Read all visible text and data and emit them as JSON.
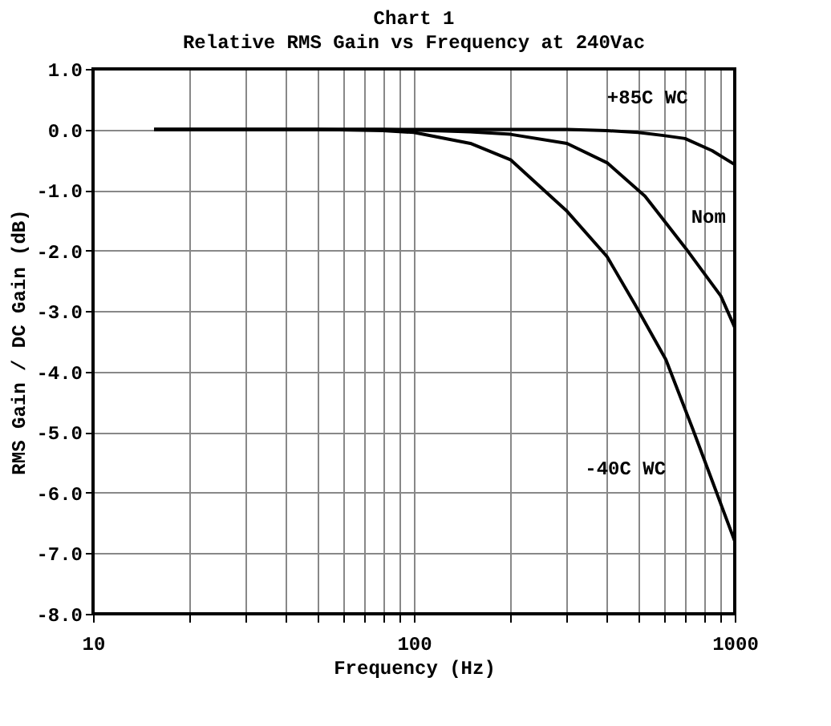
{
  "chart_data": {
    "type": "line",
    "title": "Chart 1",
    "subtitle": "Relative RMS Gain vs Frequency at 240Vac",
    "xlabel": "Frequency (Hz)",
    "ylabel": "RMS Gain / DC Gain (dB)",
    "log": "x",
    "grid": true,
    "legend": false,
    "marker": "none",
    "line_style": "solid",
    "xlim": [
      10,
      1000
    ],
    "ylim": [
      -8,
      1
    ],
    "xticks": [
      10,
      {
        "value": 20,
        "label": null
      },
      {
        "value": 30,
        "label": null
      },
      {
        "value": 40,
        "label": null
      },
      {
        "value": 50,
        "label": null
      },
      {
        "value": 60,
        "label": null
      },
      {
        "value": 70,
        "label": null
      },
      {
        "value": 80,
        "label": null
      },
      {
        "value": 90,
        "label": null
      },
      100,
      {
        "value": 200,
        "label": null
      },
      {
        "value": 300,
        "label": null
      },
      {
        "value": 400,
        "label": null
      },
      {
        "value": 500,
        "label": null
      },
      {
        "value": 600,
        "label": null
      },
      {
        "value": 700,
        "label": null
      },
      {
        "value": 800,
        "label": null
      },
      {
        "value": 900,
        "label": null
      },
      1000
    ],
    "yticks": [
      {
        "value": 1,
        "label": "1.0"
      },
      {
        "value": 0,
        "label": "0.0"
      },
      {
        "value": -1,
        "label": "-1.0"
      },
      {
        "value": -2,
        "label": "-2.0"
      },
      {
        "value": -3,
        "label": "-3.0"
      },
      {
        "value": -4,
        "label": "-4.0"
      },
      {
        "value": -5,
        "label": "-5.0"
      },
      {
        "value": -6,
        "label": "-6.0"
      },
      {
        "value": -7,
        "label": "-7.0"
      },
      {
        "value": -8,
        "label": "-8.0"
      }
    ],
    "series": [
      {
        "name": "-40C WC",
        "color": "#000000",
        "x": [
          15.5,
          50,
          80,
          100,
          150,
          200,
          300,
          400,
          490,
          610,
          740,
          850,
          1000
        ],
        "values": [
          0,
          0,
          -0.02,
          -0.05,
          -0.23,
          -0.5,
          -1.35,
          -2.1,
          -2.9,
          -3.8,
          -4.95,
          -5.8,
          -6.8
        ]
      },
      {
        "name": "Nom",
        "color": "#000000",
        "x": [
          15.5,
          80,
          100,
          150,
          200,
          300,
          400,
          525,
          705,
          905,
          1000
        ],
        "values": [
          0,
          0,
          -0.01,
          -0.04,
          -0.08,
          -0.23,
          -0.55,
          -1.1,
          -1.97,
          -2.75,
          -3.27
        ]
      },
      {
        "name": "+85C WC",
        "color": "#000000",
        "x": [
          15.5,
          200,
          300,
          400,
          500,
          600,
          700,
          850,
          1000
        ],
        "values": [
          0,
          0,
          0,
          -0.02,
          -0.05,
          -0.1,
          -0.15,
          -0.35,
          -0.58
        ]
      }
    ]
  }
}
